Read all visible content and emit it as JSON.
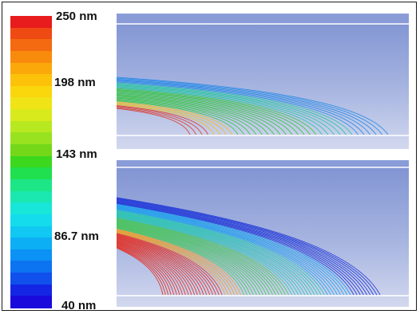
{
  "colorbar": {
    "colors": [
      "#e81c1c",
      "#f04a14",
      "#f46a10",
      "#f88a0c",
      "#fba80a",
      "#fcc20a",
      "#fad60c",
      "#f0e416",
      "#d8ea1c",
      "#b8e820",
      "#98e220",
      "#74d818",
      "#3cd81e",
      "#20e050",
      "#1ce686",
      "#1ae8b0",
      "#18e6d8",
      "#14dcec",
      "#10c8f2",
      "#0caef4",
      "#0c92f4",
      "#0c74f0",
      "#1050ec",
      "#1426e4",
      "#1a0adc"
    ],
    "labels": [
      "250 nm",
      "198 nm",
      "143 nm",
      "86.7 nm",
      "40 nm"
    ]
  },
  "panels": [
    {
      "name": "top-panel",
      "bands": [
        {
          "color": "#e03828",
          "frac": 0.12
        },
        {
          "color": "#f0c020",
          "frac": 0.12
        },
        {
          "color": "#30c838",
          "frac": 0.4
        },
        {
          "color": "#20c8a0",
          "frac": 0.2
        },
        {
          "color": "#2088e8",
          "frac": 0.16
        }
      ]
    },
    {
      "name": "bottom-panel",
      "bands": [
        {
          "color": "#e82818",
          "frac": 0.3
        },
        {
          "color": "#f0a020",
          "frac": 0.08
        },
        {
          "color": "#40c850",
          "frac": 0.22
        },
        {
          "color": "#20c8b0",
          "frac": 0.16
        },
        {
          "color": "#18a0f0",
          "frac": 0.12
        },
        {
          "color": "#1830d8",
          "frac": 0.12
        }
      ]
    }
  ]
}
